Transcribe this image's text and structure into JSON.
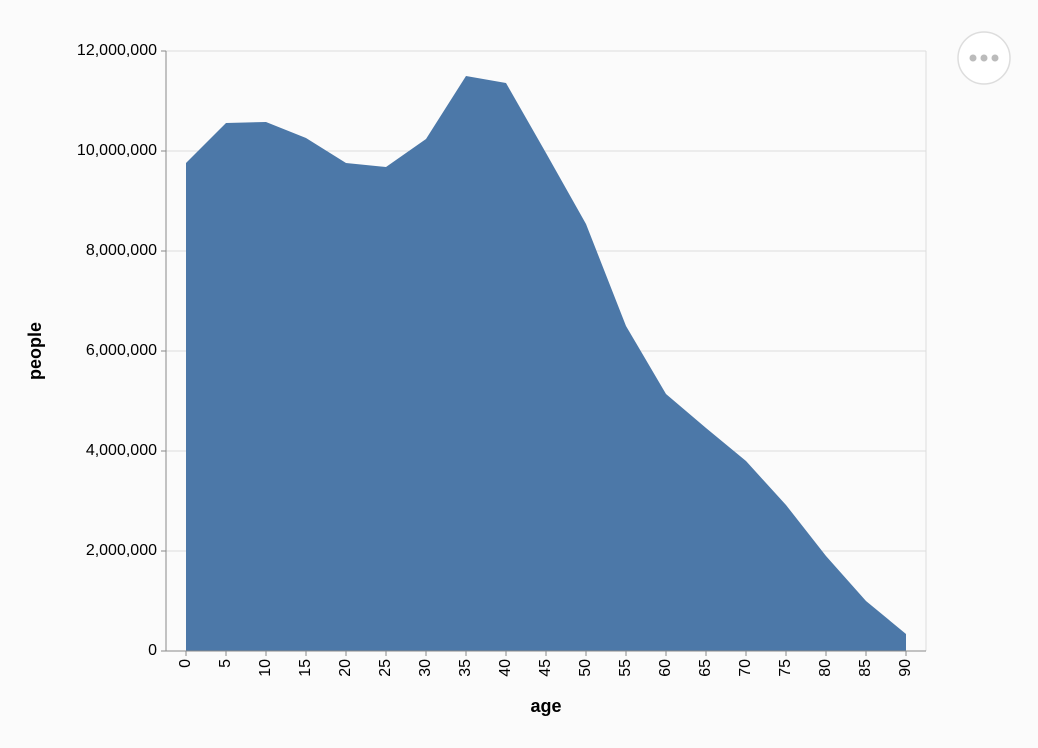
{
  "chart_data": {
    "type": "area",
    "x_label": "age",
    "y_label": "people",
    "x": [
      0,
      5,
      10,
      15,
      20,
      25,
      30,
      35,
      40,
      45,
      50,
      55,
      60,
      65,
      70,
      75,
      80,
      85,
      90
    ],
    "values": [
      9760000,
      10560000,
      10580000,
      10260000,
      9760000,
      9680000,
      10240000,
      11500000,
      11360000,
      9960000,
      8540000,
      6500000,
      5140000,
      4460000,
      3800000,
      2920000,
      1900000,
      1000000,
      340000
    ],
    "color": "#4c78a8",
    "xlim": [
      -2.5,
      92.5
    ],
    "xticks": [
      0,
      5,
      10,
      15,
      20,
      25,
      30,
      35,
      40,
      45,
      50,
      55,
      60,
      65,
      70,
      75,
      80,
      85,
      90
    ],
    "ylim": [
      0,
      12000000
    ],
    "yticks": [
      0,
      {
        "value": 2000000,
        "label": "2,000,000"
      },
      {
        "value": 4000000,
        "label": "4,000,000"
      },
      {
        "value": 6000000,
        "label": "6,000,000"
      },
      {
        "value": 8000000,
        "label": "8,000,000"
      },
      {
        "value": 10000000,
        "label": "10,000,000"
      },
      {
        "value": 12000000,
        "label": "12,000,000"
      }
    ],
    "grid": true
  }
}
